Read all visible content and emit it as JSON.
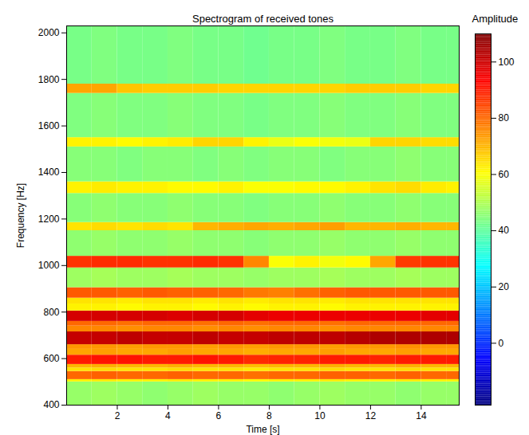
{
  "chart_data": {
    "type": "heatmap",
    "title": "Spectrogram of received tones",
    "x_label": "Time [s]",
    "y_label": "Frequency [Hz]",
    "xlim": [
      0,
      15.5
    ],
    "ylim": [
      400,
      2030
    ],
    "xticks": [
      2,
      4,
      6,
      8,
      10,
      12,
      14
    ],
    "yticks": [
      400,
      600,
      800,
      1000,
      1200,
      1400,
      1600,
      1800,
      2000
    ],
    "x_edges": [
      0,
      1,
      2,
      3,
      4,
      5,
      6,
      7,
      8,
      9,
      10,
      11,
      12,
      13,
      14,
      15,
      15.5
    ],
    "y_edges": [
      400,
      500,
      510,
      545,
      560,
      575,
      615,
      640,
      660,
      715,
      740,
      760,
      805,
      835,
      860,
      905,
      990,
      1040,
      1150,
      1185,
      1310,
      1360,
      1510,
      1550,
      1740,
      1780,
      2030
    ],
    "cells": [
      [
        47,
        48,
        47,
        46,
        47,
        48,
        47,
        47,
        46,
        47,
        48,
        47,
        47,
        46,
        47,
        47
      ],
      [
        62,
        63,
        62,
        62,
        63,
        62,
        62,
        61,
        62,
        62,
        63,
        62,
        62,
        63,
        62,
        62
      ],
      [
        80,
        81,
        80,
        80,
        81,
        80,
        80,
        79,
        80,
        80,
        81,
        81,
        80,
        81,
        80,
        80
      ],
      [
        64,
        65,
        64,
        64,
        65,
        64,
        64,
        63,
        64,
        64,
        65,
        64,
        64,
        65,
        64,
        64
      ],
      [
        70,
        71,
        70,
        70,
        71,
        70,
        70,
        69,
        70,
        70,
        71,
        70,
        70,
        71,
        70,
        70
      ],
      [
        90,
        91,
        91,
        90,
        90,
        91,
        90,
        88,
        89,
        89,
        90,
        90,
        89,
        90,
        90,
        90
      ],
      [
        72,
        73,
        72,
        72,
        73,
        72,
        72,
        71,
        72,
        72,
        73,
        72,
        72,
        73,
        72,
        72
      ],
      [
        74,
        74,
        73,
        74,
        74,
        73,
        74,
        73,
        74,
        74,
        73,
        74,
        74,
        75,
        74,
        74
      ],
      [
        101,
        101,
        102,
        101,
        101,
        102,
        101,
        101,
        102,
        102,
        102,
        103,
        104,
        104,
        104,
        104
      ],
      [
        76,
        76,
        75,
        76,
        76,
        75,
        76,
        75,
        76,
        76,
        75,
        76,
        76,
        76,
        76,
        76
      ],
      [
        80,
        80,
        79,
        80,
        80,
        79,
        80,
        79,
        80,
        80,
        79,
        80,
        80,
        80,
        80,
        80
      ],
      [
        99,
        99,
        99,
        99,
        98,
        99,
        99,
        97,
        96,
        96,
        96,
        96,
        96,
        96,
        97,
        97
      ],
      [
        62,
        62,
        61,
        62,
        62,
        61,
        62,
        61,
        62,
        62,
        61,
        62,
        62,
        62,
        62,
        62
      ],
      [
        64,
        64,
        63,
        64,
        64,
        63,
        64,
        63,
        64,
        64,
        63,
        64,
        64,
        64,
        64,
        64
      ],
      [
        82,
        82,
        81,
        82,
        81,
        81,
        80,
        78,
        77,
        79,
        81,
        82,
        82,
        82,
        82,
        82
      ],
      [
        48,
        49,
        48,
        48,
        49,
        48,
        48,
        47,
        48,
        48,
        49,
        48,
        48,
        49,
        48,
        48
      ],
      [
        87,
        88,
        88,
        87,
        87,
        88,
        87,
        76,
        60,
        62,
        59,
        61,
        72,
        86,
        87,
        87
      ],
      [
        46,
        47,
        46,
        46,
        47,
        46,
        46,
        45,
        46,
        46,
        47,
        46,
        46,
        47,
        46,
        46
      ],
      [
        64,
        65,
        64,
        65,
        64,
        70,
        71,
        72,
        71,
        72,
        73,
        70,
        70,
        71,
        70,
        70
      ],
      [
        45,
        46,
        45,
        45,
        46,
        45,
        45,
        44,
        45,
        45,
        46,
        45,
        45,
        46,
        45,
        45
      ],
      [
        62,
        63,
        62,
        62,
        61,
        61,
        62,
        60,
        60,
        61,
        61,
        62,
        64,
        65,
        63,
        62
      ],
      [
        45,
        45,
        44,
        45,
        45,
        44,
        45,
        44,
        45,
        45,
        44,
        45,
        45,
        46,
        45,
        45
      ],
      [
        62,
        62,
        61,
        62,
        63,
        66,
        66,
        62,
        58,
        60,
        59,
        58,
        66,
        66,
        65,
        65
      ],
      [
        44,
        45,
        44,
        44,
        45,
        44,
        44,
        43,
        44,
        44,
        45,
        44,
        44,
        45,
        44,
        44
      ],
      [
        72,
        72,
        68,
        67,
        67,
        67,
        66,
        66,
        66,
        66,
        66,
        67,
        67,
        67,
        66,
        66
      ],
      [
        43,
        44,
        43,
        43,
        44,
        43,
        43,
        42,
        43,
        43,
        44,
        43,
        43,
        44,
        43,
        43
      ]
    ],
    "colorbar": {
      "label": "Amplitude",
      "range": [
        -22,
        110
      ],
      "ticks": [
        0,
        20,
        40,
        60,
        80,
        100
      ]
    }
  }
}
